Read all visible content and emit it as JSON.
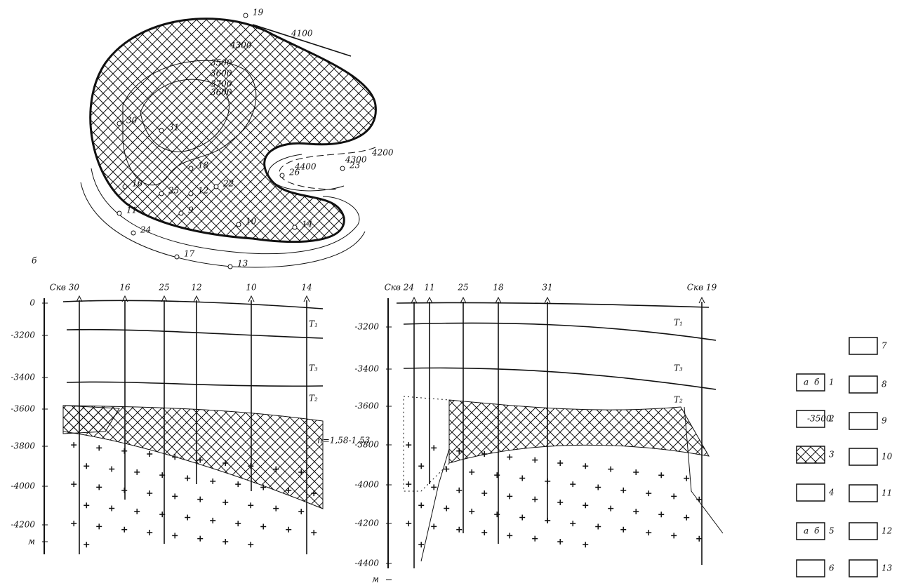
{
  "map": {
    "wells": [
      "19",
      "30",
      "31",
      "16",
      "25",
      "12",
      "18",
      "22",
      "9",
      "11",
      "24",
      "17",
      "13",
      "10",
      "14",
      "26",
      "23"
    ],
    "contour_labels": [
      "4100",
      "4300",
      "4200",
      "4300",
      "4400",
      "3500",
      "3600",
      "3700",
      "3600"
    ]
  },
  "section_label": "б",
  "section1": {
    "wells": [
      "Скв 30",
      "16",
      "25",
      "12",
      "10",
      "14"
    ],
    "depths": [
      "0",
      "-3200",
      "-3400",
      "-3600",
      "-3800",
      "-4000",
      "-4200",
      "м"
    ],
    "layers": [
      "T₁",
      "T₃",
      "T₂"
    ],
    "annotation": "п=1,58-1,53"
  },
  "section2": {
    "wells": [
      "Скв 24",
      "11",
      "25",
      "18",
      "31",
      "Скв 19"
    ],
    "depths": [
      "-3200",
      "-3400",
      "-3600",
      "-3800",
      "-4000",
      "-4200",
      "-4400",
      "м"
    ],
    "layers": [
      "T₁",
      "T₃",
      "T₂"
    ]
  },
  "legend": {
    "items": [
      "1",
      "2",
      "3",
      "4",
      "5",
      "6",
      "7",
      "8",
      "9",
      "10",
      "11",
      "12",
      "13"
    ],
    "box_texts": [
      "а",
      "б",
      "-3500",
      "а",
      "б"
    ]
  }
}
